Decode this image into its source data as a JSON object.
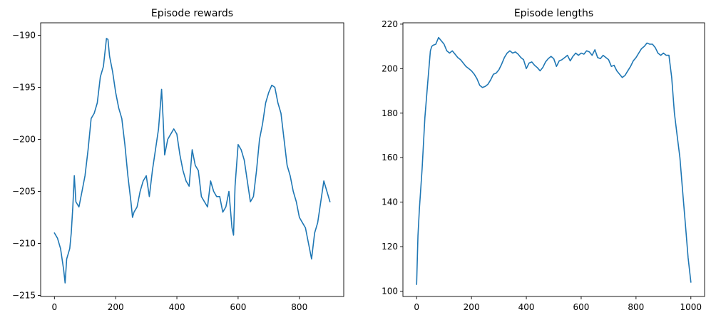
{
  "chart_data": [
    {
      "type": "line",
      "title": "Episode rewards",
      "xlabel": "",
      "ylabel": "",
      "xlim": [
        -45,
        945
      ],
      "ylim": [
        -215.1,
        -188.8
      ],
      "xticks": [
        0,
        200,
        400,
        600,
        800
      ],
      "yticks": [
        -215,
        -210,
        -205,
        -200,
        -195,
        -190
      ],
      "xtick_labels": [
        "0",
        "200",
        "400",
        "600",
        "800"
      ],
      "ytick_labels": [
        "−215",
        "−210",
        "−205",
        "−200",
        "−195",
        "−190"
      ],
      "grid": false,
      "color": "#1f77b4",
      "series": [
        {
          "x": [
            0,
            10,
            20,
            30,
            35,
            40,
            50,
            55,
            60,
            65,
            70,
            80,
            90,
            100,
            110,
            120,
            130,
            140,
            150,
            160,
            170,
            175,
            180,
            190,
            200,
            210,
            220,
            230,
            240,
            250,
            255,
            260,
            270,
            280,
            290,
            300,
            310,
            320,
            330,
            340,
            350,
            355,
            360,
            370,
            380,
            390,
            400,
            410,
            420,
            430,
            440,
            450,
            460,
            470,
            480,
            490,
            500,
            510,
            520,
            530,
            540,
            550,
            560,
            570,
            580,
            585,
            590,
            600,
            610,
            620,
            630,
            640,
            650,
            660,
            670,
            680,
            690,
            700,
            710,
            720,
            730,
            740,
            750,
            760,
            770,
            780,
            790,
            800,
            810,
            820,
            830,
            840,
            850,
            860,
            870,
            880,
            890,
            900
          ],
          "y": [
            -209,
            -209.5,
            -210.5,
            -212.5,
            -213.8,
            -211.5,
            -210.5,
            -209,
            -206.5,
            -203.5,
            -206,
            -206.5,
            -205,
            -203.5,
            -201,
            -198,
            -197.5,
            -196.5,
            -194,
            -193,
            -190.3,
            -190.4,
            -192,
            -193.5,
            -195.5,
            -197,
            -198,
            -200.5,
            -203.5,
            -206,
            -207.5,
            -207,
            -206.5,
            -205,
            -204,
            -203.5,
            -205.5,
            -203,
            -201,
            -199,
            -195.2,
            -198,
            -201.5,
            -200,
            -199.5,
            -199,
            -199.5,
            -201.5,
            -203,
            -204,
            -204.5,
            -201,
            -202.5,
            -203,
            -205.5,
            -206,
            -206.5,
            -204,
            -205,
            -205.5,
            -205.5,
            -207,
            -206.5,
            -205,
            -208.5,
            -209.2,
            -204.5,
            -200.5,
            -201,
            -202,
            -204,
            -206,
            -205.5,
            -203,
            -200,
            -198.5,
            -196.5,
            -195.5,
            -194.8,
            -195,
            -196.5,
            -197.5,
            -200,
            -202.5,
            -203.5,
            -205,
            -206,
            -207.5,
            -208,
            -208.5,
            -210,
            -211.5,
            -209,
            -208,
            -206,
            -204,
            -205,
            -206
          ]
        }
      ]
    },
    {
      "type": "line",
      "title": "Episode lengths",
      "xlabel": "",
      "ylabel": "",
      "xlim": [
        -50,
        1050
      ],
      "ylim": [
        97.6,
        220.6
      ],
      "xticks": [
        0,
        200,
        400,
        600,
        800,
        1000
      ],
      "yticks": [
        100,
        120,
        140,
        160,
        180,
        200,
        220
      ],
      "xtick_labels": [
        "0",
        "200",
        "400",
        "600",
        "800",
        "1000"
      ],
      "ytick_labels": [
        "100",
        "120",
        "140",
        "160",
        "180",
        "200",
        "220"
      ],
      "grid": false,
      "color": "#1f77b4",
      "series": [
        {
          "x": [
            0,
            5,
            10,
            20,
            30,
            40,
            50,
            55,
            60,
            70,
            80,
            90,
            100,
            110,
            120,
            130,
            140,
            150,
            160,
            170,
            180,
            190,
            200,
            210,
            220,
            230,
            240,
            250,
            260,
            270,
            280,
            290,
            300,
            310,
            320,
            330,
            340,
            350,
            360,
            370,
            380,
            390,
            400,
            410,
            420,
            430,
            440,
            450,
            460,
            470,
            480,
            490,
            500,
            510,
            520,
            530,
            540,
            550,
            560,
            570,
            580,
            590,
            600,
            610,
            620,
            630,
            640,
            650,
            660,
            670,
            680,
            690,
            700,
            710,
            720,
            730,
            740,
            750,
            760,
            770,
            780,
            790,
            800,
            810,
            820,
            830,
            840,
            850,
            860,
            870,
            880,
            890,
            900,
            910,
            920,
            930,
            940,
            950,
            960,
            970,
            980,
            990,
            1000
          ],
          "y": [
            103,
            125,
            137,
            155,
            178,
            193,
            208,
            210,
            210.5,
            211,
            214,
            212.5,
            211,
            208,
            207,
            208,
            206.5,
            205,
            204,
            202.5,
            201,
            200,
            199,
            197.5,
            195.5,
            192.5,
            191.5,
            192,
            193,
            195,
            197.5,
            198,
            199.5,
            202,
            205,
            207,
            208,
            207,
            207.5,
            206.5,
            205,
            204,
            200,
            202.5,
            203,
            201.5,
            200.5,
            199,
            200.5,
            203,
            204.5,
            205.5,
            204.5,
            201,
            203.5,
            204,
            205,
            206,
            203.5,
            205.5,
            207,
            206,
            207,
            206.5,
            208,
            207.5,
            206,
            208.5,
            205,
            204.5,
            206,
            205,
            204,
            201,
            201.5,
            199,
            197.5,
            196,
            197,
            199,
            201,
            203.5,
            205,
            207,
            209,
            210,
            211.5,
            211,
            211,
            209.5,
            207,
            206,
            207,
            206,
            206,
            196,
            180,
            170,
            160,
            145,
            130,
            115,
            104
          ]
        }
      ]
    }
  ]
}
